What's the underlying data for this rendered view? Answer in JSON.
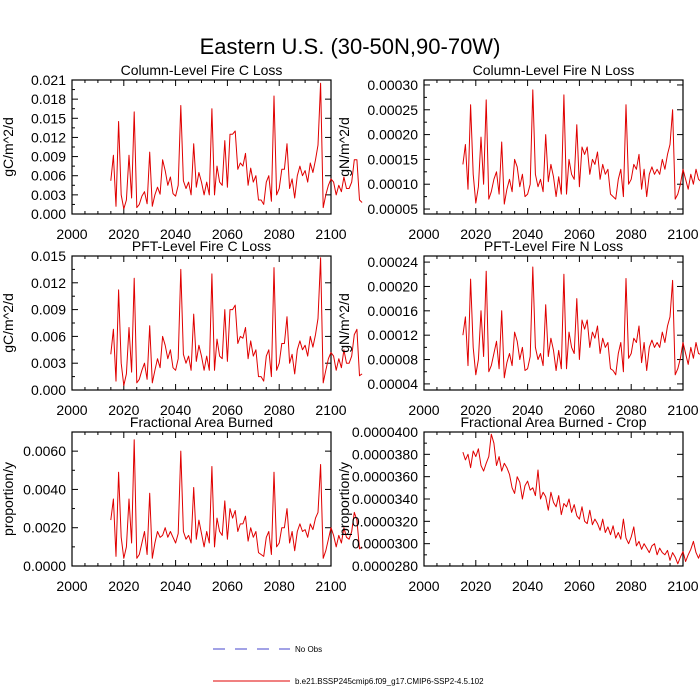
{
  "figure_title": "Eastern U.S. (30-50N,90-70W)",
  "legend": [
    {
      "label": "No Obs",
      "style": "dashed",
      "color": "#4444cc"
    },
    {
      "label": "b.e21.BSSP245cmip6.f09_g17.CMIP6-SSP2-4.5.102",
      "style": "solid",
      "color": "#e00000"
    }
  ],
  "chart_data": [
    {
      "type": "line",
      "title": "Column-Level Fire C Loss",
      "ylabel": "gC/m^2/d",
      "xlim": [
        2000,
        2100
      ],
      "ylim": [
        0,
        0.021
      ],
      "xticks": [
        "2000",
        "2020",
        "2040",
        "2060",
        "2080",
        "2100"
      ],
      "yticks": [
        "0.000",
        "0.003",
        "0.006",
        "0.009",
        "0.012",
        "0.015",
        "0.018",
        "0.021"
      ],
      "series": [
        {
          "name": "b.e21.BSSP245cmip6.f09_g17.CMIP6-SSP2-4.5.102",
          "color": "#e00000",
          "x_start": 2015,
          "values": [
            0.0052,
            0.0092,
            0.0012,
            0.0145,
            0.003,
            0.0008,
            0.0022,
            0.0092,
            0.0025,
            0.016,
            0.001,
            0.0015,
            0.0028,
            0.0035,
            0.0016,
            0.0097,
            0.0012,
            0.003,
            0.0042,
            0.0031,
            0.0085,
            0.0068,
            0.0045,
            0.0058,
            0.0032,
            0.0028,
            0.0045,
            0.017,
            0.0052,
            0.004,
            0.005,
            0.003,
            0.011,
            0.0042,
            0.0065,
            0.005,
            0.003,
            0.005,
            0.003,
            0.0165,
            0.003,
            0.0075,
            0.005,
            0.0045,
            0.0115,
            0.0042,
            0.0125,
            0.0125,
            0.013,
            0.007,
            0.008,
            0.0075,
            0.0095,
            0.0045,
            0.0072,
            0.005,
            0.006,
            0.0022,
            0.0022,
            0.0015,
            0.005,
            0.006,
            0.002,
            0.0185,
            0.003,
            0.004,
            0.007,
            0.007,
            0.011,
            0.004,
            0.0055,
            0.0025,
            0.006,
            0.0075,
            0.006,
            0.0068,
            0.005,
            0.008,
            0.0065,
            0.0085,
            0.0108,
            0.0205,
            0.001,
            0.003,
            0.0045,
            0.0055,
            0.005,
            0.003,
            0.0045,
            0.0035,
            0.0058,
            0.004,
            0.004,
            0.005,
            0.0085,
            0.0085,
            0.0022,
            0.0018
          ]
        }
      ]
    },
    {
      "type": "line",
      "title": "Column-Level Fire N Loss",
      "ylabel": "gN/m^2/d",
      "xlim": [
        2000,
        2100
      ],
      "ylim": [
        4e-05,
        0.00031
      ],
      "xticks": [
        "2000",
        "2020",
        "2040",
        "2060",
        "2080",
        "2100"
      ],
      "yticks": [
        "0.00005",
        "0.00010",
        "0.00015",
        "0.00020",
        "0.00025",
        "0.00030"
      ],
      "series": [
        {
          "name": "b.e21.BSSP245cmip6.f09_g17.CMIP6-SSP2-4.5.102",
          "color": "#e00000",
          "x_start": 2015,
          "values": [
            0.00014,
            0.00018,
            9e-05,
            0.00026,
            0.00012,
            6.2e-05,
            9.5e-05,
            0.000195,
            0.0001,
            0.00027,
            7e-05,
            8.5e-05,
            0.00011,
            0.000125,
            8e-05,
            0.000185,
            6e-05,
            9e-05,
            0.00011,
            8.5e-05,
            0.00015,
            0.000135,
            9.5e-05,
            0.00012,
            7.5e-05,
            8e-05,
            0.0001,
            0.00029,
            0.00012,
            9.5e-05,
            0.00011,
            8.5e-05,
            0.0002,
            0.000105,
            0.00014,
            0.000115,
            7.5e-05,
            0.000115,
            8e-05,
            0.00028,
            8e-05,
            0.00015,
            0.00012,
            0.00011,
            0.00022,
            9.5e-05,
            0.000175,
            0.00016,
            0.000175,
            0.00012,
            0.00015,
            0.00014,
            0.000165,
            0.00011,
            0.00014,
            0.00012,
            0.00013,
            8e-05,
            7.5e-05,
            7e-05,
            0.00011,
            0.00013,
            7.5e-05,
            0.00026,
            0.0001,
            0.00011,
            0.00014,
            0.00013,
            0.00016,
            9e-05,
            0.00013,
            7.5e-05,
            0.00012,
            0.000135,
            0.00012,
            0.00013,
            0.00012,
            0.00015,
            0.00013,
            0.00016,
            0.00018,
            0.00025,
            7e-05,
            8e-05,
            0.0001,
            0.00013,
            0.00011,
            9e-05,
            0.00012,
            0.0001,
            0.00013,
            0.00011,
            0.000105,
            0.00012,
            0.00016,
            0.00015,
            9.5e-05,
            9e-05
          ]
        }
      ]
    },
    {
      "type": "line",
      "title": "PFT-Level Fire C Loss",
      "ylabel": "gC/m^2/d",
      "xlim": [
        2000,
        2100
      ],
      "ylim": [
        0,
        0.015
      ],
      "xticks": [
        "2000",
        "2020",
        "2040",
        "2060",
        "2080",
        "2100"
      ],
      "yticks": [
        "0.000",
        "0.003",
        "0.006",
        "0.009",
        "0.012",
        "0.015"
      ],
      "series": [
        {
          "name": "b.e21.BSSP245cmip6.f09_g17.CMIP6-SSP2-4.5.102",
          "color": "#e00000",
          "x_start": 2015,
          "values": [
            0.004,
            0.0068,
            0.001,
            0.0112,
            0.003,
            0.0005,
            0.0018,
            0.007,
            0.002,
            0.0125,
            0.0008,
            0.0012,
            0.0022,
            0.003,
            0.0012,
            0.0072,
            0.0008,
            0.0022,
            0.0035,
            0.0025,
            0.006,
            0.005,
            0.0035,
            0.0045,
            0.0025,
            0.0022,
            0.0035,
            0.0135,
            0.004,
            0.003,
            0.0038,
            0.0022,
            0.0085,
            0.0032,
            0.005,
            0.0038,
            0.0022,
            0.0038,
            0.0022,
            0.013,
            0.0022,
            0.0057,
            0.0038,
            0.0035,
            0.009,
            0.0032,
            0.009,
            0.009,
            0.0095,
            0.0052,
            0.006,
            0.0058,
            0.007,
            0.0035,
            0.0055,
            0.0038,
            0.0045,
            0.0015,
            0.0015,
            0.001,
            0.0038,
            0.0045,
            0.0015,
            0.0137,
            0.0022,
            0.003,
            0.0052,
            0.0052,
            0.0082,
            0.003,
            0.004,
            0.0018,
            0.0045,
            0.0055,
            0.0045,
            0.005,
            0.0038,
            0.006,
            0.0048,
            0.0062,
            0.008,
            0.0148,
            0.0008,
            0.0022,
            0.0035,
            0.0042,
            0.0038,
            0.0022,
            0.0035,
            0.0025,
            0.0045,
            0.003,
            0.003,
            0.0038,
            0.0062,
            0.0068,
            0.0016,
            0.0018
          ]
        }
      ]
    },
    {
      "type": "line",
      "title": "PFT-Level Fire N Loss",
      "ylabel": "gN/m^2/d",
      "xlim": [
        2000,
        2100
      ],
      "ylim": [
        3e-05,
        0.00025
      ],
      "xticks": [
        "2000",
        "2020",
        "2040",
        "2060",
        "2080",
        "2100"
      ],
      "yticks": [
        "0.00004",
        "0.00008",
        "0.00012",
        "0.00016",
        "0.00020",
        "0.00024"
      ],
      "series": [
        {
          "name": "b.e21.BSSP245cmip6.f09_g17.CMIP6-SSP2-4.5.102",
          "color": "#e00000",
          "x_start": 2015,
          "values": [
            0.00012,
            0.00015,
            7e-05,
            0.000212,
            0.0001,
            5.5e-05,
            8e-05,
            0.00016,
            8.5e-05,
            0.000225,
            6e-05,
            7e-05,
            9e-05,
            0.00011,
            6.5e-05,
            0.00016,
            5e-05,
            7.5e-05,
            9e-05,
            7e-05,
            0.000125,
            0.00011,
            8e-05,
            0.0001,
            6.2e-05,
            6.5e-05,
            8.5e-05,
            0.000232,
            0.0001,
            8e-05,
            9e-05,
            7e-05,
            0.00017,
            8.5e-05,
            0.000115,
            9.5e-05,
            6.2e-05,
            9.5e-05,
            6.5e-05,
            0.00022,
            6.5e-05,
            0.000125,
            0.0001,
            9e-05,
            0.00018,
            8e-05,
            0.000145,
            0.00013,
            0.000145,
            0.0001,
            0.000125,
            0.000115,
            0.000135,
            9e-05,
            0.000115,
            0.0001,
            0.000108,
            6.5e-05,
            6.2e-05,
            5.5e-05,
            9e-05,
            0.000108,
            6e-05,
            0.000213,
            8.2e-05,
            9e-05,
            0.000115,
            0.000108,
            0.000135,
            7.5e-05,
            0.000108,
            6.2e-05,
            0.0001,
            0.000112,
            0.0001,
            0.000108,
            0.0001,
            0.000125,
            0.000108,
            0.000135,
            0.00015,
            0.00021,
            5.5e-05,
            6.5e-05,
            8.2e-05,
            0.000108,
            9e-05,
            7.2e-05,
            0.0001,
            8.2e-05,
            0.000108,
            9e-05,
            8.8e-05,
            0.0001,
            0.00015,
            0.000125,
            8e-05,
            8.5e-05
          ]
        }
      ]
    },
    {
      "type": "line",
      "title": "Fractional Area Burned",
      "ylabel": "proportion/y",
      "xlim": [
        2000,
        2100
      ],
      "ylim": [
        0,
        0.007
      ],
      "xticks": [
        "2000",
        "2020",
        "2040",
        "2060",
        "2080",
        "2100"
      ],
      "yticks": [
        "0.0000",
        "0.0020",
        "0.0040",
        "0.0060"
      ],
      "series": [
        {
          "name": "b.e21.BSSP245cmip6.f09_g17.CMIP6-SSP2-4.5.102",
          "color": "#e00000",
          "x_start": 2015,
          "values": [
            0.0024,
            0.0035,
            0.0005,
            0.0049,
            0.0015,
            0.0004,
            0.001,
            0.0035,
            0.0012,
            0.0066,
            0.0004,
            0.0006,
            0.0012,
            0.0018,
            0.0006,
            0.0038,
            0.0004,
            0.0012,
            0.0018,
            0.0015,
            0.0016,
            0.002,
            0.0015,
            0.0018,
            0.0015,
            0.0012,
            0.0017,
            0.006,
            0.0018,
            0.0014,
            0.0016,
            0.0012,
            0.0041,
            0.0014,
            0.0024,
            0.0017,
            0.001,
            0.0018,
            0.0012,
            0.0052,
            0.001,
            0.0025,
            0.0018,
            0.0016,
            0.0034,
            0.0014,
            0.003,
            0.0025,
            0.0029,
            0.0018,
            0.0022,
            0.0022,
            0.0026,
            0.0013,
            0.002,
            0.0015,
            0.0018,
            0.0007,
            0.0006,
            0.0005,
            0.0015,
            0.0018,
            0.0006,
            0.0049,
            0.001,
            0.0012,
            0.002,
            0.002,
            0.003,
            0.0012,
            0.0018,
            0.0008,
            0.0018,
            0.0022,
            0.0018,
            0.0019,
            0.0015,
            0.0022,
            0.0019,
            0.0025,
            0.0028,
            0.0053,
            0.0004,
            0.0008,
            0.0014,
            0.002,
            0.0016,
            0.001,
            0.0016,
            0.0012,
            0.002,
            0.0015,
            0.0014,
            0.0018,
            0.0028,
            0.0024,
            0.0009,
            0.001
          ]
        }
      ]
    },
    {
      "type": "line",
      "title": "Fractional Area Burned - Crop",
      "ylabel": "proportion/y",
      "xlim": [
        2000,
        2100
      ],
      "ylim": [
        2.8e-05,
        4e-05
      ],
      "xticks": [
        "2000",
        "2020",
        "2040",
        "2060",
        "2080",
        "2100"
      ],
      "yticks": [
        "0.0000280",
        "0.0000300",
        "0.0000320",
        "0.0000340",
        "0.0000360",
        "0.0000380",
        "0.0000400"
      ],
      "series": [
        {
          "name": "b.e21.BSSP245cmip6.f09_g17.CMIP6-SSP2-4.5.102",
          "color": "#e00000",
          "x_start": 2015,
          "values": [
            3.82e-05,
            3.75e-05,
            3.8e-05,
            3.68e-05,
            3.83e-05,
            3.78e-05,
            3.85e-05,
            3.7e-05,
            3.65e-05,
            3.72e-05,
            3.78e-05,
            3.98e-05,
            3.9e-05,
            3.7e-05,
            3.78e-05,
            3.65e-05,
            3.72e-05,
            3.68e-05,
            3.62e-05,
            3.5e-05,
            3.45e-05,
            3.6e-05,
            3.55e-05,
            3.4e-05,
            3.52e-05,
            3.56e-05,
            3.48e-05,
            3.5e-05,
            3.43e-05,
            3.66e-05,
            3.4e-05,
            3.46e-05,
            3.42e-05,
            3.3e-05,
            3.46e-05,
            3.37e-05,
            3.33e-05,
            3.43e-05,
            3.26e-05,
            3.36e-05,
            3.33e-05,
            3.4e-05,
            3.28e-05,
            3.35e-05,
            3.25e-05,
            3.22e-05,
            3.33e-05,
            3.2e-05,
            3.18e-05,
            3.3e-05,
            3.17e-05,
            3.22e-05,
            3.18e-05,
            3.12e-05,
            3.22e-05,
            3.1e-05,
            3.15e-05,
            3.08e-05,
            3.16e-05,
            3.05e-05,
            3.1e-05,
            3.04e-05,
            3.22e-05,
            3.05e-05,
            3e-05,
            3.06e-05,
            3.15e-05,
            2.98e-05,
            3.02e-05,
            2.95e-05,
            3e-05,
            2.96e-05,
            2.92e-05,
            2.98e-05,
            3e-05,
            2.9e-05,
            2.96e-05,
            2.92e-05,
            2.9e-05,
            2.94e-05,
            2.85e-05,
            2.92e-05,
            2.88e-05,
            2.82e-05,
            2.88e-05,
            2.93e-05,
            2.84e-05,
            2.9e-05,
            2.95e-05,
            3.02e-05,
            2.92e-05,
            2.87e-05,
            2.93e-05,
            2.95e-05,
            2.9e-05,
            2.88e-05,
            2.92e-05,
            3.1e-05
          ]
        }
      ]
    }
  ]
}
